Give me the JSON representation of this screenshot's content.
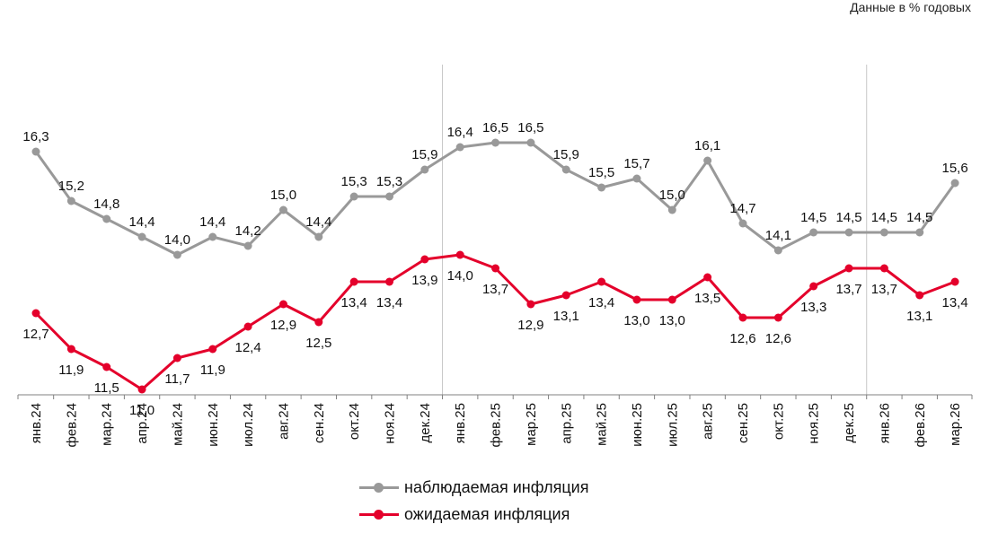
{
  "note": "Данные в % годовых",
  "chart_data": {
    "type": "line",
    "categories": [
      "янв.24",
      "фев.24",
      "мар.24",
      "апр.24",
      "май.24",
      "июн.24",
      "июл.24",
      "авг.24",
      "сен.24",
      "окт.24",
      "ноя.24",
      "дек.24",
      "янв.25",
      "фев.25",
      "мар.25",
      "апр.25",
      "май.25",
      "июн.25",
      "июл.25",
      "авг.25",
      "сен.25",
      "окт.25",
      "ноя.25",
      "дек.25",
      "янв.26",
      "фев.26",
      "мар.26"
    ],
    "series": [
      {
        "name": "наблюдаемая инфляция",
        "color": "#999999",
        "values": [
          16.3,
          15.2,
          14.8,
          14.4,
          14.0,
          14.4,
          14.2,
          15.0,
          14.4,
          15.3,
          15.3,
          15.9,
          16.4,
          16.5,
          16.5,
          15.9,
          15.5,
          15.7,
          15.0,
          16.1,
          14.7,
          14.1,
          14.5,
          14.5,
          14.5,
          14.5,
          15.6
        ],
        "labels": [
          "16,3",
          "15,2",
          "14,8",
          "14,4",
          "14,0",
          "14,4",
          "14,2",
          "15,0",
          "14,4",
          "15,3",
          "15,3",
          "15,9",
          "16,4",
          "16,5",
          "16,5",
          "15,9",
          "15,5",
          "15,7",
          "15,0",
          "16,1",
          "14,7",
          "14,1",
          "14,5",
          "14,5",
          "14,5",
          "14,5",
          "15,6"
        ]
      },
      {
        "name": "ожидаемая инфляция",
        "color": "#e4002b",
        "values": [
          12.7,
          11.9,
          11.5,
          11.0,
          11.7,
          11.9,
          12.4,
          12.9,
          12.5,
          13.4,
          13.4,
          13.9,
          14.0,
          13.7,
          12.9,
          13.1,
          13.4,
          13.0,
          13.0,
          13.5,
          12.6,
          12.6,
          13.3,
          13.7,
          13.7,
          13.1,
          13.4
        ],
        "labels": [
          "12,7",
          "11,9",
          "11,5",
          "11,0",
          "11,7",
          "11,9",
          "12,4",
          "12,9",
          "12,5",
          "13,4",
          "13,4",
          "13,9",
          "14,0",
          "13,7",
          "12,9",
          "13,1",
          "13,4",
          "13,0",
          "13,0",
          "13,5",
          "12,6",
          "12,6",
          "13,3",
          "13,7",
          "13,7",
          "13,1",
          "13,4"
        ]
      }
    ],
    "grid": false,
    "year_separators_after": [
      "дек.24",
      "дек.25"
    ],
    "legend_position": "bottom"
  }
}
